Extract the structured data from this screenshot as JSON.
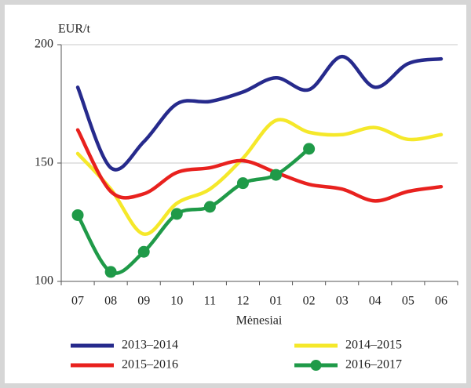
{
  "chart_data": {
    "type": "line",
    "y_label": "EUR/t",
    "x_label": "Mėnesiai",
    "categories": [
      "07",
      "08",
      "09",
      "10",
      "11",
      "12",
      "01",
      "02",
      "03",
      "04",
      "05",
      "06"
    ],
    "series": [
      {
        "name": "2013–2014",
        "color": "#262a8c",
        "values": [
          182,
          148,
          159,
          175,
          176,
          180,
          186,
          181,
          195,
          182,
          192,
          194
        ]
      },
      {
        "name": "2014–2015",
        "color": "#f5e82a",
        "values": [
          154,
          139,
          120,
          133,
          139,
          152,
          168,
          163,
          162,
          165,
          160,
          162
        ]
      },
      {
        "name": "2015–2016",
        "color": "#e8211e",
        "values": [
          164,
          138,
          137,
          146,
          148,
          151,
          146,
          141,
          139,
          134,
          138,
          140
        ]
      },
      {
        "name": "2016–2017",
        "color": "#1f9a48",
        "markers": true,
        "values": [
          128,
          104,
          112.5,
          128.5,
          131.5,
          141.5,
          145,
          156,
          null,
          null,
          null,
          null
        ]
      }
    ],
    "ylim": [
      100,
      200
    ],
    "yticks": [
      100,
      150,
      200
    ],
    "grid": true
  }
}
